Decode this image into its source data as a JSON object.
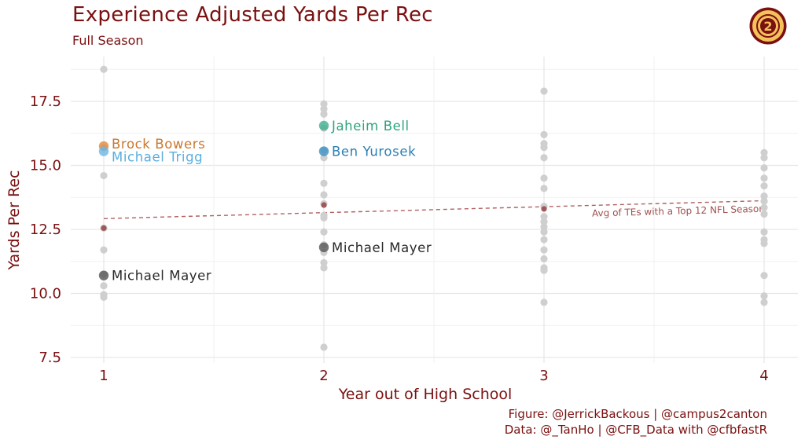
{
  "chart_data": {
    "type": "scatter",
    "title": "Experience Adjusted Yards Per Rec",
    "subtitle": "Full Season",
    "xlabel": "Year out of High School",
    "ylabel": "Yards Per Rec",
    "xlim": [
      0.85,
      4.15
    ],
    "ylim": [
      7.2,
      19.0
    ],
    "x_ticks": [
      1,
      2,
      3,
      4
    ],
    "y_ticks": [
      7.5,
      10.0,
      12.5,
      15.0,
      17.5
    ],
    "y_tick_labels": [
      "7.5",
      "10.0",
      "12.5",
      "15.0",
      "17.5"
    ],
    "x_tick_labels": [
      "1",
      "2",
      "3",
      "4"
    ],
    "grid": true,
    "background_points": [
      [
        1,
        18.75
      ],
      [
        1,
        15.7
      ],
      [
        1,
        14.6
      ],
      [
        1,
        12.55
      ],
      [
        1,
        11.7
      ],
      [
        1,
        10.75
      ],
      [
        1,
        10.3
      ],
      [
        1,
        9.95
      ],
      [
        1,
        9.85
      ],
      [
        2,
        17.4
      ],
      [
        2,
        17.2
      ],
      [
        2,
        17.0
      ],
      [
        2,
        16.45
      ],
      [
        2,
        15.6
      ],
      [
        2,
        15.3
      ],
      [
        2,
        14.3
      ],
      [
        2,
        13.85
      ],
      [
        2,
        13.5
      ],
      [
        2,
        13.05
      ],
      [
        2,
        12.95
      ],
      [
        2,
        12.4
      ],
      [
        2,
        11.9
      ],
      [
        2,
        11.6
      ],
      [
        2,
        11.2
      ],
      [
        2,
        11.0
      ],
      [
        2,
        7.9
      ],
      [
        3,
        17.9
      ],
      [
        3,
        16.2
      ],
      [
        3,
        15.85
      ],
      [
        3,
        15.7
      ],
      [
        3,
        15.3
      ],
      [
        3,
        14.5
      ],
      [
        3,
        14.1
      ],
      [
        3,
        13.4
      ],
      [
        3,
        13.0
      ],
      [
        3,
        12.8
      ],
      [
        3,
        12.6
      ],
      [
        3,
        12.4
      ],
      [
        3,
        12.1
      ],
      [
        3,
        11.7
      ],
      [
        3,
        11.35
      ],
      [
        3,
        11.0
      ],
      [
        3,
        10.9
      ],
      [
        3,
        9.65
      ],
      [
        4,
        15.5
      ],
      [
        4,
        15.3
      ],
      [
        4,
        14.9
      ],
      [
        4,
        14.5
      ],
      [
        4,
        14.2
      ],
      [
        4,
        13.8
      ],
      [
        4,
        13.6
      ],
      [
        4,
        13.35
      ],
      [
        4,
        13.1
      ],
      [
        4,
        12.4
      ],
      [
        4,
        12.1
      ],
      [
        4,
        11.95
      ],
      [
        4,
        10.7
      ],
      [
        4,
        9.9
      ],
      [
        4,
        9.65
      ]
    ],
    "highlighted": [
      {
        "name": "Brock Bowers",
        "x": 1,
        "y": 15.75,
        "color": "#e08a3c",
        "label_color": "#c8772e"
      },
      {
        "name": "Michael Trigg",
        "x": 1,
        "y": 15.55,
        "color": "#6bb6e6",
        "label_color": "#5aaedf"
      },
      {
        "name": "Michael Mayer",
        "x": 1,
        "y": 10.7,
        "color": "#555555",
        "label_color": "#2a2a2a"
      },
      {
        "name": "Jaheim Bell",
        "x": 2,
        "y": 16.55,
        "color": "#3fae8e",
        "label_color": "#2fa37f"
      },
      {
        "name": "Ben Yurosek",
        "x": 2,
        "y": 15.55,
        "color": "#3a8fc4",
        "label_color": "#2a7fb4"
      },
      {
        "name": "Michael Mayer",
        "x": 2,
        "y": 11.8,
        "color": "#555555",
        "label_color": "#2a2a2a"
      }
    ],
    "top12_points": [
      {
        "x": 1,
        "y": 12.55
      },
      {
        "x": 2,
        "y": 13.45
      },
      {
        "x": 3,
        "y": 13.3
      }
    ],
    "trend_line": {
      "label": "Avg of TEs with a Top 12 NFL Season",
      "x": [
        1,
        4
      ],
      "y": [
        12.92,
        13.62
      ],
      "color": "#b06060"
    }
  },
  "caption": {
    "line1": "Figure: @JerrickBackous | @campus2canton",
    "line2": "Data: @_TanHo | @CFB_Data with @cfbfastR"
  },
  "logo": {
    "text": "2",
    "colors": {
      "ring": "#7a1010",
      "fill": "#f4c15a"
    }
  },
  "colors": {
    "accent": "#7a1010",
    "gray_point": "#cfcfcf",
    "top12_point": "#9b4a4a"
  }
}
